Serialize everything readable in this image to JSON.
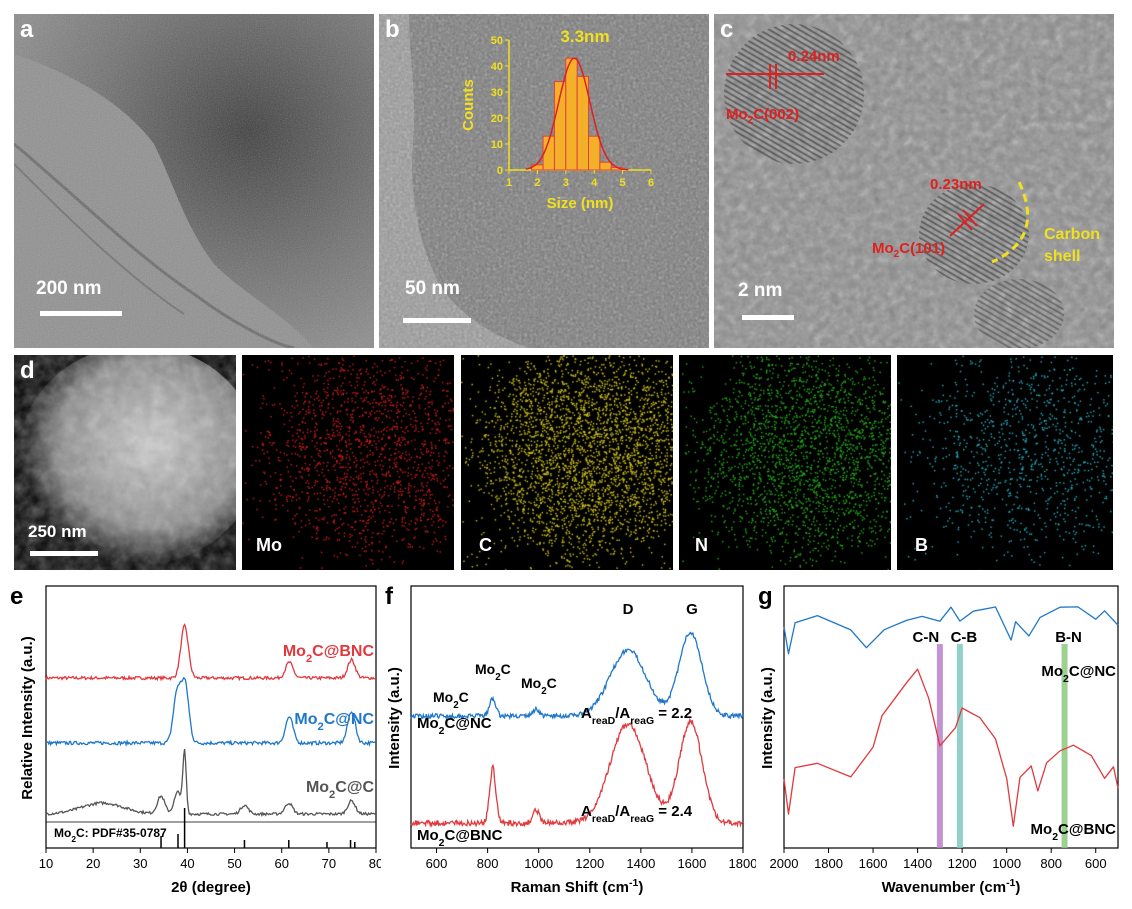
{
  "panels": {
    "a": {
      "label": "a",
      "scale": "200 nm"
    },
    "b": {
      "label": "b",
      "scale": "50 nm",
      "hist": {
        "peak_label": "3.3nm",
        "xlabel": "Size (nm)",
        "ylabel": "Counts",
        "xticks": [
          "1",
          "2",
          "3",
          "4",
          "5",
          "6"
        ],
        "yticks": [
          "0",
          "10",
          "20",
          "30",
          "40",
          "50"
        ]
      }
    },
    "c": {
      "label": "c",
      "scale": "2 nm",
      "d1": "0.24nm",
      "plane1_pre": "Mo",
      "plane1_sub": "2",
      "plane1_post": "C(002)",
      "d2": "0.23nm",
      "plane2_pre": "Mo",
      "plane2_sub": "2",
      "plane2_post": "C(101)",
      "shell1": "Carbon",
      "shell2": "shell"
    },
    "d": {
      "label": "d",
      "scale": "250 nm",
      "maps": [
        "Mo",
        "C",
        "N",
        "B"
      ]
    },
    "e": {
      "label": "e"
    },
    "f": {
      "label": "f"
    },
    "g": {
      "label": "g"
    }
  },
  "colors": {
    "red": "#e0393e",
    "blue": "#1f77c9",
    "gray": "#555555",
    "mo": "#d81e1e",
    "c": "#d6c81e",
    "n": "#28b41e",
    "b": "#28b4c8"
  },
  "chart_data": [
    {
      "id": "b-inset",
      "type": "bar",
      "title": "3.3nm",
      "xlabel": "Size (nm)",
      "ylabel": "Counts",
      "xlim": [
        1,
        6
      ],
      "ylim": [
        0,
        50
      ],
      "bin_edges": [
        1.8,
        2.2,
        2.6,
        3.0,
        3.4,
        3.8,
        4.2,
        4.6,
        5.0
      ],
      "values": [
        2,
        13,
        34,
        43,
        36,
        13,
        3,
        1
      ],
      "fit_curve": "gaussian",
      "fit_center": 3.3
    },
    {
      "id": "e",
      "type": "line",
      "xlabel": "2θ (degree)",
      "ylabel": "Relative Intensity (a.u.)",
      "xlim": [
        10,
        80
      ],
      "xticks": [
        "10",
        "20",
        "30",
        "40",
        "50",
        "60",
        "70",
        "80"
      ],
      "series": [
        {
          "name_pre": "Mo",
          "name_sub": "2",
          "name_post": "C@BNC",
          "color": "#e0393e",
          "peaks": [
            [
              39.4,
              1.0
            ],
            [
              61.6,
              0.3
            ],
            [
              74.8,
              0.35
            ]
          ]
        },
        {
          "name_pre": "Mo",
          "name_sub": "2",
          "name_post": "C@NC",
          "color": "#1f77c9",
          "peaks": [
            [
              37.8,
              0.85
            ],
            [
              39.5,
              1.0
            ],
            [
              61.6,
              0.45
            ],
            [
              74.8,
              0.55
            ]
          ]
        },
        {
          "name_pre": "Mo",
          "name_sub": "2",
          "name_post": "C@C",
          "color": "#555555",
          "peaks": [
            [
              34.4,
              0.4
            ],
            [
              38.0,
              0.5
            ],
            [
              39.4,
              1.35
            ],
            [
              52.1,
              0.2
            ],
            [
              61.5,
              0.25
            ],
            [
              74.8,
              0.3
            ]
          ]
        }
      ],
      "reference": {
        "label_pre": "Mo",
        "label_sub": "2",
        "label_post": "C: PDF#35-0787",
        "lines": [
          [
            34.4,
            0.3
          ],
          [
            38.0,
            0.35
          ],
          [
            39.4,
            1.0
          ],
          [
            52.1,
            0.2
          ],
          [
            61.5,
            0.2
          ],
          [
            69.6,
            0.15
          ],
          [
            74.6,
            0.2
          ],
          [
            75.5,
            0.15
          ]
        ]
      }
    },
    {
      "id": "f",
      "type": "line",
      "xlabel_pre": "Raman Shift (cm",
      "xlabel_sup": "-1",
      "xlabel_post": ")",
      "ylabel": "Intensity (a.u.)",
      "xlim": [
        500,
        1800
      ],
      "xticks": [
        "600",
        "800",
        "1000",
        "1200",
        "1400",
        "1600",
        "1800"
      ],
      "peak_labels": [
        "D",
        "G"
      ],
      "mo2c_labels": [
        {
          "pre": "Mo",
          "sub": "2",
          "post": "C"
        },
        {
          "pre": "Mo",
          "sub": "2",
          "post": "C"
        },
        {
          "pre": "Mo",
          "sub": "2",
          "post": "C"
        }
      ],
      "series": [
        {
          "name_pre": "Mo",
          "name_sub": "2",
          "name_post": "C@NC",
          "color": "#1f77c9",
          "ratio": {
            "a": "A",
            "sub1": "reaD",
            "slash": "/A",
            "sub2": "reaG",
            "val": " = 2.2"
          },
          "peaks": [
            [
              820,
              0.2
            ],
            [
              990,
              0.08
            ],
            [
              1350,
              0.75
            ],
            [
              1595,
              0.95
            ]
          ]
        },
        {
          "name_pre": "Mo",
          "name_sub": "2",
          "name_post": "C@BNC",
          "color": "#e0393e",
          "ratio": {
            "a": "A",
            "sub1": "reaD",
            "slash": "/A",
            "sub2": "reaG",
            "val": " = 2.4"
          },
          "peaks": [
            [
              820,
              0.5
            ],
            [
              990,
              0.12
            ],
            [
              1350,
              0.9
            ],
            [
              1595,
              0.92
            ]
          ]
        }
      ]
    },
    {
      "id": "g",
      "type": "line",
      "xlabel_pre": "Wavenumber (cm",
      "xlabel_sup": "-1",
      "xlabel_post": ")",
      "ylabel": "Intensity (a.u.)",
      "xlim": [
        2000,
        500
      ],
      "reversed": true,
      "xticks": [
        "2000",
        "1800",
        "1600",
        "1400",
        "1200",
        "1000",
        "800",
        "600"
      ],
      "bands": [
        {
          "label": "C-N",
          "x": 1300,
          "color": "#b77fc9"
        },
        {
          "label": "C-B",
          "x": 1210,
          "color": "#7fc9c0"
        },
        {
          "label": "B-N",
          "x": 740,
          "color": "#8bc97f"
        }
      ],
      "series": [
        {
          "name_pre": "Mo",
          "name_sub": "2",
          "name_post": "C@NC",
          "color": "#1f77c9"
        },
        {
          "name_pre": "Mo",
          "name_sub": "2",
          "name_post": "C@BNC",
          "color": "#e0393e"
        }
      ]
    }
  ]
}
